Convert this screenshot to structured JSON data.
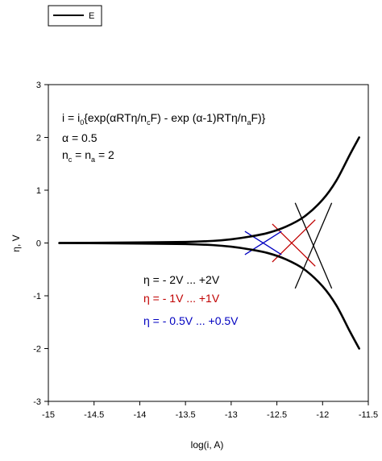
{
  "chart_data": {
    "type": "line",
    "title": "",
    "xlabel": "log(i, A)",
    "ylabel": "η, V",
    "xlim": [
      -15,
      -11.5
    ],
    "ylim": [
      -3,
      3
    ],
    "xticks": [
      -15,
      -14.5,
      -14,
      -13.5,
      -13,
      -12.5,
      -12,
      -11.5
    ],
    "yticks": [
      -3,
      -2,
      -1,
      0,
      1,
      2,
      3
    ],
    "xtick_labels": [
      "-15",
      "-14.5",
      "-14",
      "-13.5",
      "-13",
      "-12.5",
      "-12",
      "-11.5"
    ],
    "ytick_labels": [
      "-3",
      "-2",
      "-1",
      "0",
      "1",
      "2",
      "3"
    ],
    "grid": false,
    "legend": {
      "position": "top-left",
      "entries": [
        {
          "label": "E",
          "color": "#000000"
        }
      ]
    },
    "series": [
      {
        "name": "E",
        "color": "#000000",
        "branches": [
          {
            "x": [
              -14.88,
              -14.0,
              -13.5,
              -13.2,
              -13.0,
              -12.8,
              -12.6,
              -12.4,
              -12.2,
              -12.0,
              -11.85,
              -11.7,
              -11.6
            ],
            "y": [
              0.0,
              0.01,
              0.02,
              0.04,
              0.07,
              0.12,
              0.19,
              0.31,
              0.5,
              0.82,
              1.18,
              1.68,
              2.0
            ]
          },
          {
            "x": [
              -14.88,
              -14.0,
              -13.5,
              -13.2,
              -13.0,
              -12.8,
              -12.6,
              -12.4,
              -12.2,
              -12.0,
              -11.85,
              -11.7,
              -11.6
            ],
            "y": [
              0.0,
              -0.01,
              -0.02,
              -0.04,
              -0.07,
              -0.12,
              -0.19,
              -0.31,
              -0.5,
              -0.82,
              -1.18,
              -1.68,
              -2.0
            ]
          }
        ]
      }
    ],
    "tangents": [
      {
        "color": "#000000",
        "segments": [
          {
            "x": [
              -12.3,
              -11.9
            ],
            "y": [
              0.76,
              -0.86
            ]
          },
          {
            "x": [
              -12.3,
              -11.9
            ],
            "y": [
              -0.86,
              0.76
            ]
          }
        ]
      },
      {
        "color": "#c00000",
        "segments": [
          {
            "x": [
              -12.55,
              -12.08
            ],
            "y": [
              0.36,
              -0.44
            ]
          },
          {
            "x": [
              -12.55,
              -12.08
            ],
            "y": [
              -0.36,
              0.44
            ]
          }
        ]
      },
      {
        "color": "#0000c0",
        "segments": [
          {
            "x": [
              -12.85,
              -12.45
            ],
            "y": [
              0.22,
              -0.22
            ]
          },
          {
            "x": [
              -12.85,
              -12.45
            ],
            "y": [
              -0.22,
              0.22
            ]
          }
        ]
      }
    ],
    "annotations": {
      "equation": {
        "prefix": "i = i",
        "s1": "0",
        "part2": "{exp(αRTη/n",
        "s2": "c",
        "part3": "F) - exp (α-1)RTη/n",
        "s3": "a",
        "part4": "F)}"
      },
      "alpha": "α = 0.5",
      "n_eq": {
        "p1": "n",
        "s1": "c",
        "p2": " = n",
        "s2": "a",
        "p3": " = 2"
      },
      "ranges": [
        {
          "text": "η = - 2V ... +2V",
          "color": "#000000"
        },
        {
          "text": "η = - 1V ... +1V",
          "color": "#c00000"
        },
        {
          "text": "η = - 0.5V ... +0.5V",
          "color": "#0000c0"
        }
      ]
    }
  }
}
